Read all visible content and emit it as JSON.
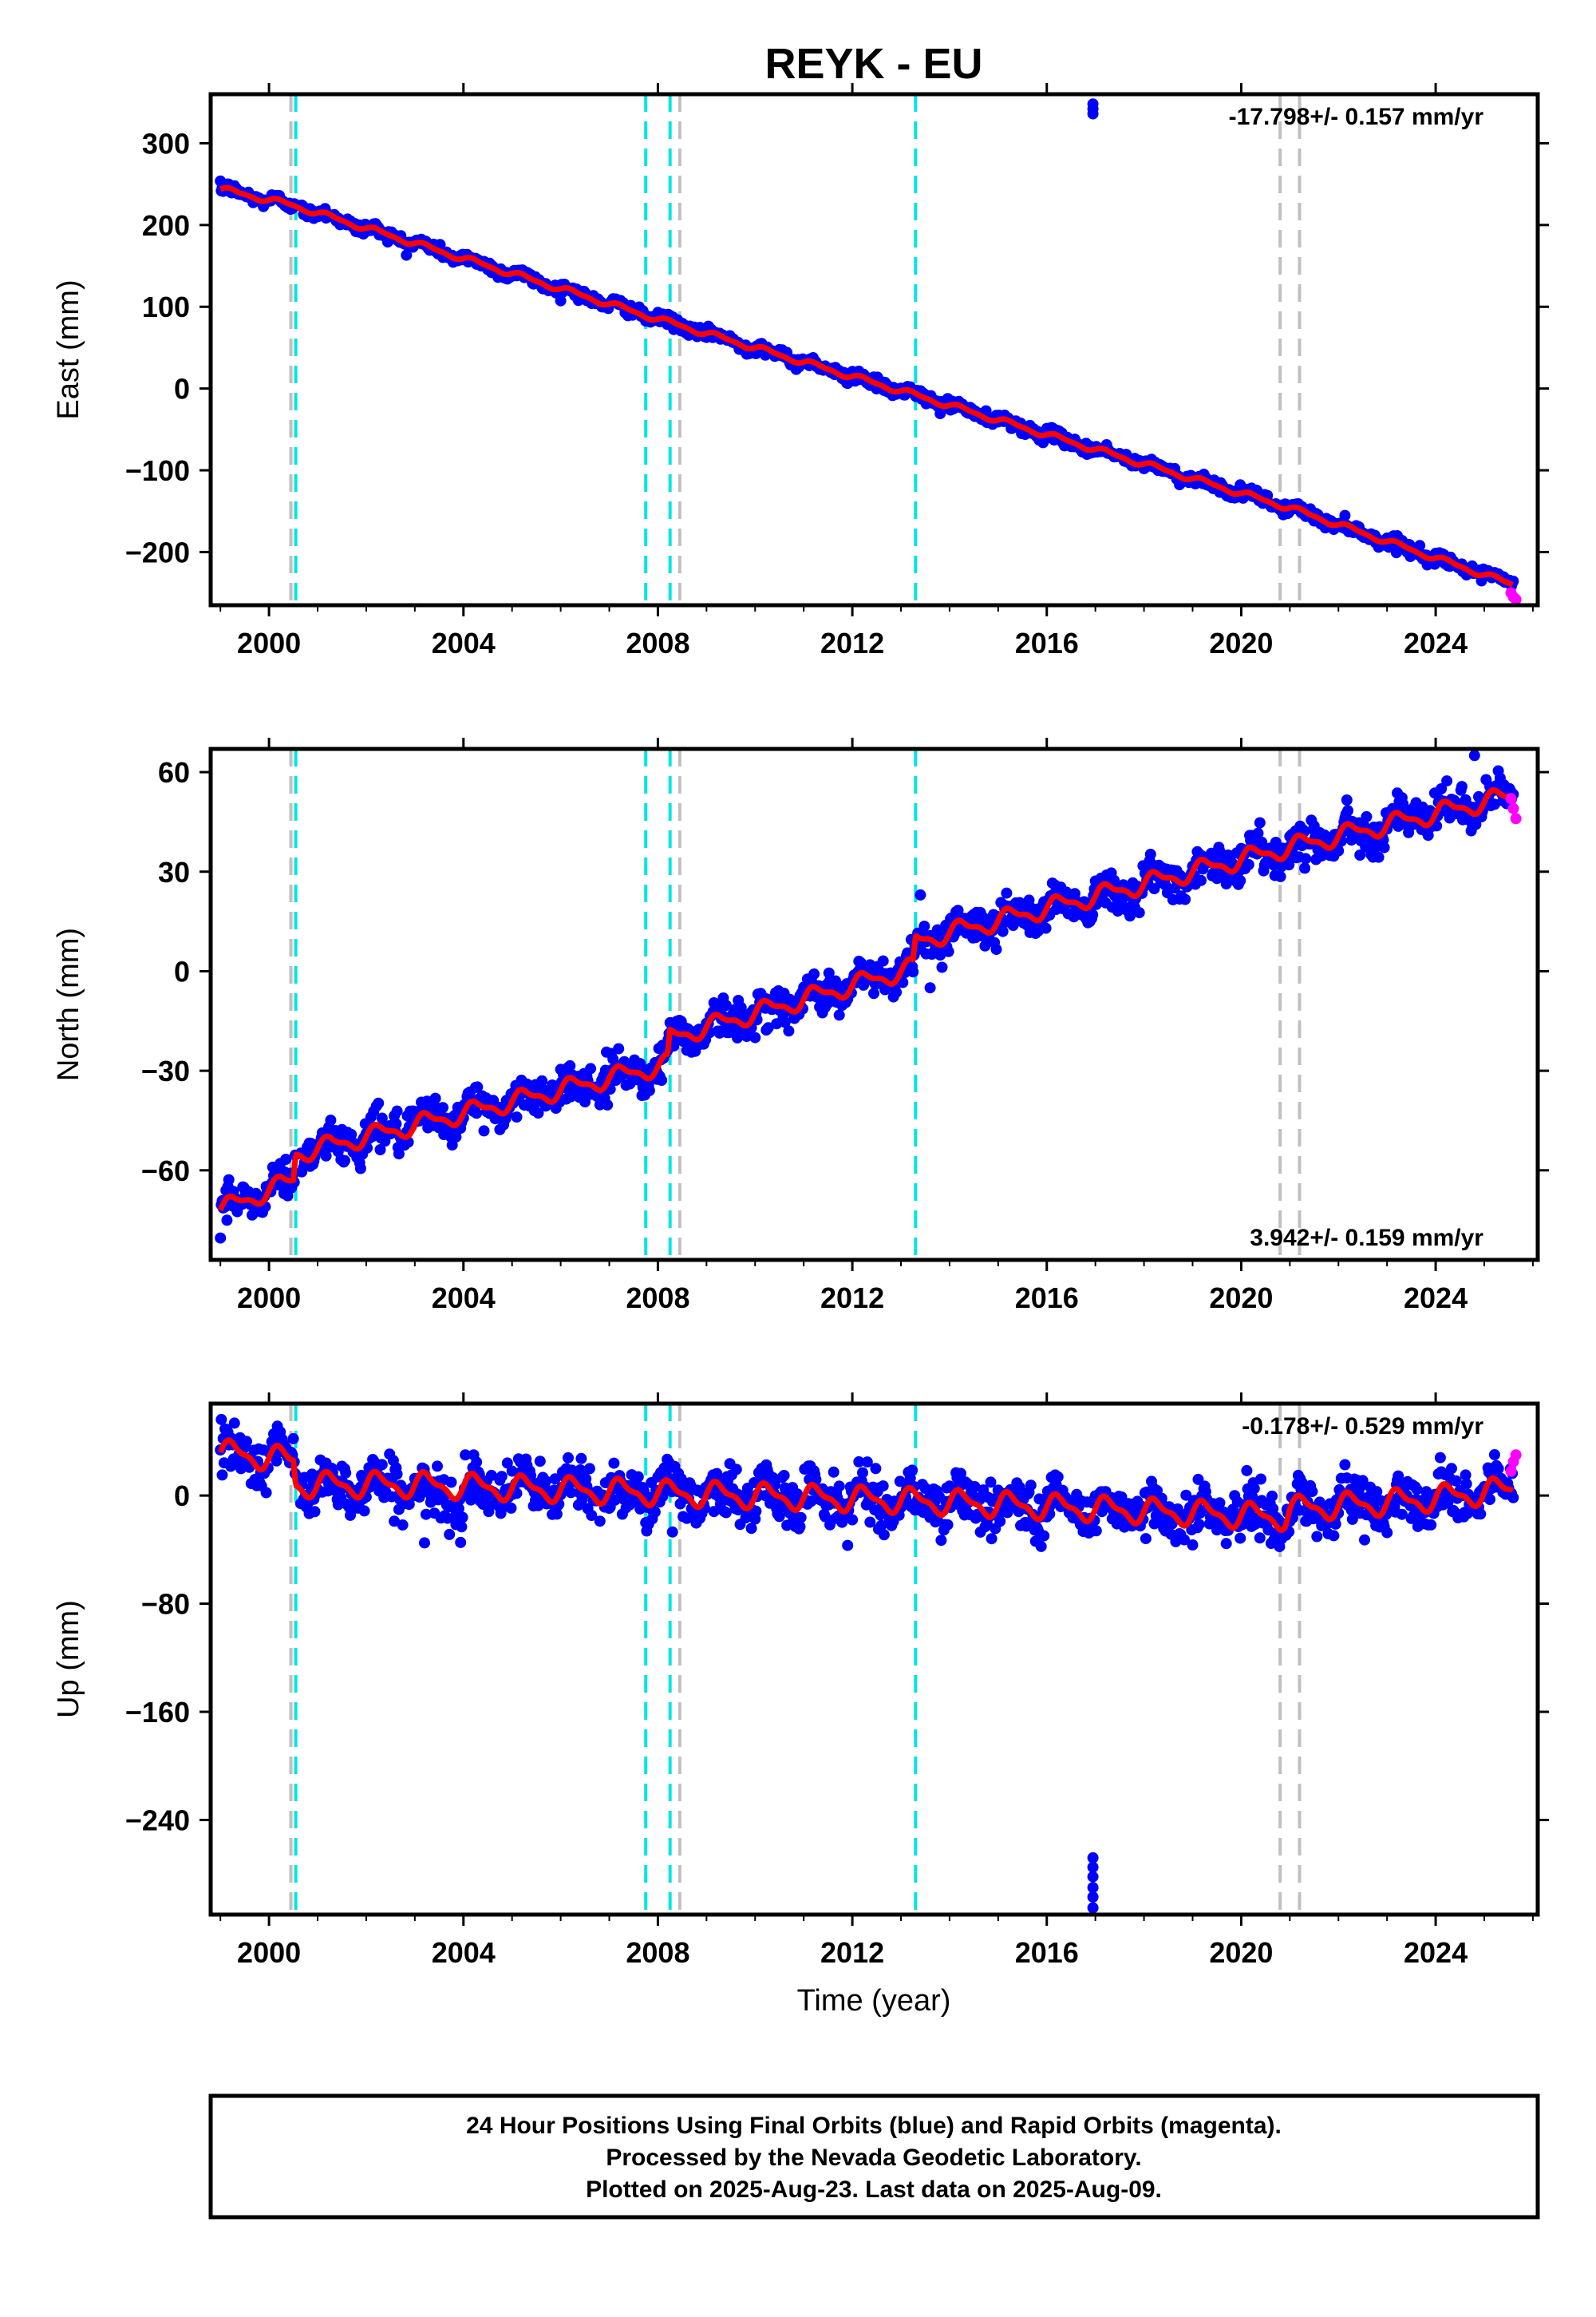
{
  "title": "REYK - EU",
  "xlabel": "Time (year)",
  "footer": {
    "line1": "24 Hour Positions Using Final Orbits (blue) and Rapid Orbits (magenta).",
    "line2": "Processed by the Nevada Geodetic Laboratory.",
    "line3": "Plotted on 2025-Aug-23. Last data on 2025-Aug-09."
  },
  "colors": {
    "final_orbits": "#0000ff",
    "rapid_orbits": "#ff00ff",
    "model_fit": "#ff0000",
    "equipment_change": "#c0c0c0",
    "earthquake": "#00e5e5"
  },
  "chart_data": [
    {
      "type": "scatter",
      "ylabel": "East (mm)",
      "rate_text": "-17.798+/- 0.157 mm/yr",
      "rate_position": "top-right",
      "xlim": [
        1998.8,
        2026.1
      ],
      "ylim": [
        -265,
        360
      ],
      "xticks": [
        2000,
        2004,
        2008,
        2012,
        2016,
        2020,
        2024
      ],
      "yticks": [
        -200,
        -100,
        0,
        100,
        200,
        300
      ],
      "rate_mm_per_yr": -17.798,
      "start": {
        "x": 1999.0,
        "y": 244
      },
      "end": {
        "x": 2025.6,
        "y": -242
      },
      "trend_knots": [
        [
          1999.0,
          244
        ],
        [
          2000.5,
          224
        ],
        [
          2008.0,
          85
        ],
        [
          2013.3,
          -8
        ],
        [
          2021.0,
          -146
        ],
        [
          2025.6,
          -240
        ]
      ],
      "offsets": [
        {
          "x": 2021.0,
          "dy": -8
        }
      ],
      "annual_amplitude": 3,
      "noise_sigma": 3.5,
      "outliers": [
        [
          2016.95,
          336
        ],
        [
          2016.95,
          342
        ],
        [
          2016.95,
          348
        ]
      ],
      "rapid_points": [
        [
          2025.55,
          -250
        ],
        [
          2025.6,
          -255
        ],
        [
          2025.65,
          -258
        ]
      ],
      "earthquakes": [
        2000.55,
        2007.75,
        2008.25,
        2013.3
      ],
      "equipment_changes": [
        2000.45,
        2008.45,
        2020.8,
        2021.2
      ],
      "grid": false
    },
    {
      "type": "scatter",
      "ylabel": "North (mm)",
      "rate_text": "3.942+/- 0.159 mm/yr",
      "rate_position": "bottom-right",
      "xlim": [
        1998.8,
        2026.1
      ],
      "ylim": [
        -87,
        67
      ],
      "xticks": [
        2000,
        2004,
        2008,
        2012,
        2016,
        2020,
        2024
      ],
      "yticks": [
        -60,
        -30,
        0,
        30,
        60
      ],
      "rate_mm_per_yr": 3.942,
      "start": {
        "x": 1999.0,
        "y": -72
      },
      "end": {
        "x": 2025.6,
        "y": 53
      },
      "trend_knots": [
        [
          1999.0,
          -72
        ],
        [
          2000.5,
          -63
        ],
        [
          2000.55,
          -55
        ],
        [
          2008.2,
          -28
        ],
        [
          2008.25,
          -20
        ],
        [
          2013.25,
          1
        ],
        [
          2013.3,
          9
        ],
        [
          2020.9,
          37
        ],
        [
          2025.6,
          53
        ]
      ],
      "offsets": [],
      "annual_amplitude": 2.5,
      "noise_sigma": 2.8,
      "outliers": [
        [
          2013.4,
          23
        ],
        [
          2013.6,
          -5
        ],
        [
          2024.8,
          65
        ]
      ],
      "rapid_points": [
        [
          2025.55,
          52
        ],
        [
          2025.6,
          49
        ],
        [
          2025.65,
          46
        ]
      ],
      "earthquakes": [
        2000.55,
        2007.75,
        2008.25,
        2013.3
      ],
      "equipment_changes": [
        2000.45,
        2008.45,
        2020.8,
        2021.2
      ],
      "grid": false
    },
    {
      "type": "scatter",
      "ylabel": "Up (mm)",
      "rate_text": "-0.178+/- 0.529 mm/yr",
      "rate_position": "top-right",
      "xlim": [
        1998.8,
        2026.1
      ],
      "ylim": [
        -310,
        68
      ],
      "xticks": [
        2000,
        2004,
        2008,
        2012,
        2016,
        2020,
        2024
      ],
      "yticks": [
        -240,
        -160,
        -80,
        0
      ],
      "rate_mm_per_yr": -0.178,
      "start": {
        "x": 1999.0,
        "y": 32
      },
      "end": {
        "x": 2025.6,
        "y": 5
      },
      "trend_knots": [
        [
          1999.0,
          32
        ],
        [
          2000.5,
          26
        ],
        [
          2000.55,
          8
        ],
        [
          2003.0,
          8
        ],
        [
          2008.0,
          2
        ],
        [
          2013.3,
          -4
        ],
        [
          2020.9,
          -16
        ],
        [
          2021.0,
          -10
        ],
        [
          2023.5,
          -4
        ],
        [
          2025.6,
          5
        ]
      ],
      "offsets": [],
      "annual_amplitude": 8,
      "noise_sigma": 9,
      "outliers": [
        [
          2016.95,
          -268
        ],
        [
          2016.95,
          -275
        ],
        [
          2016.95,
          -282
        ],
        [
          2016.95,
          -290
        ],
        [
          2016.95,
          -297
        ],
        [
          2016.95,
          -305
        ],
        [
          2003.2,
          -35
        ],
        [
          2008.3,
          -27
        ]
      ],
      "rapid_points": [
        [
          2025.55,
          18
        ],
        [
          2025.6,
          25
        ],
        [
          2025.65,
          30
        ]
      ],
      "earthquakes": [
        2000.55,
        2007.75,
        2008.25,
        2013.3
      ],
      "equipment_changes": [
        2000.45,
        2008.45,
        2020.8,
        2021.2
      ],
      "grid": false
    }
  ]
}
